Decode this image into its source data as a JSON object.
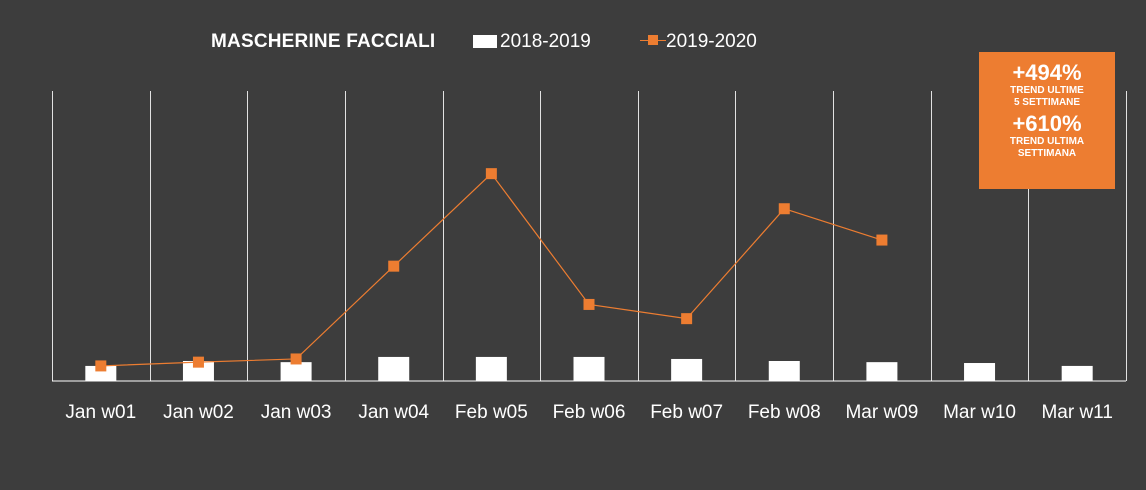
{
  "title": "MASCHERINE FACCIALI",
  "trend_box": {
    "value1": "+494%",
    "label1_line1": "TREND ULTIME",
    "label1_line2": "5 SETTIMANE",
    "value2": "+610%",
    "label2_line1": "TREND ULTIMA",
    "label2_line2": "SETTIMANA"
  },
  "colors": {
    "background": "#3d3d3d",
    "series_2018_2019": "#ffffff",
    "series_2019_2020": "#ed7d31",
    "grid": "#ffffff"
  },
  "chart_data": {
    "type": "bar+line",
    "categories": [
      "Jan w01",
      "Jan w02",
      "Jan w03",
      "Jan w04",
      "Feb w05",
      "Feb w06",
      "Feb w07",
      "Feb w08",
      "Mar w09",
      "Mar w10",
      "Mar w11"
    ],
    "series": [
      {
        "name": "2018-2019",
        "type": "bar",
        "values": [
          5.2,
          6.9,
          6.5,
          8.3,
          8.3,
          8.3,
          7.6,
          6.9,
          6.5,
          6.2,
          5.2
        ]
      },
      {
        "name": "2019-2020",
        "type": "line",
        "values": [
          5.2,
          6.5,
          7.6,
          39.6,
          71.5,
          26.4,
          21.5,
          59.4,
          48.6,
          null,
          null
        ]
      }
    ],
    "ylim": [
      0,
      100
    ],
    "grid": "vertical",
    "legend": "top"
  }
}
